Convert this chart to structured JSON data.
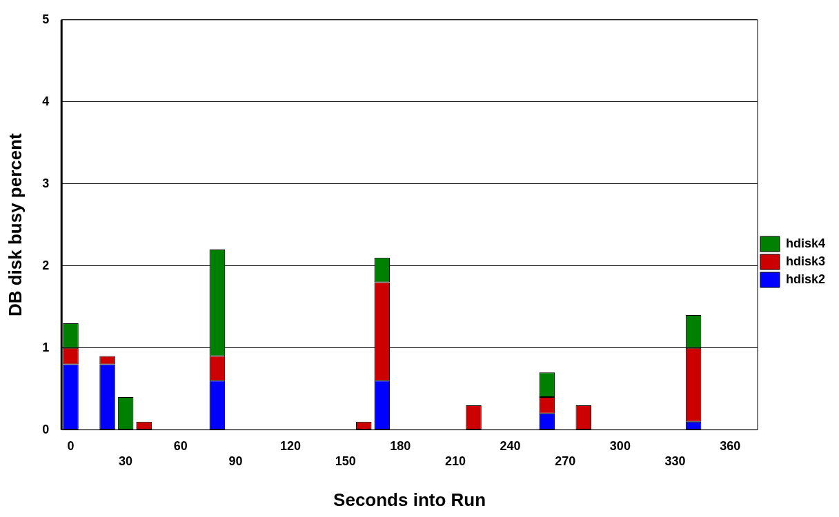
{
  "chart_data": {
    "type": "bar",
    "stacked": true,
    "xlabel": "Seconds into Run",
    "ylabel": "DB disk busy percent",
    "categories": [
      "0",
      null,
      null,
      "30",
      null,
      null,
      "60",
      null,
      null,
      "90",
      null,
      null,
      "120",
      null,
      null,
      "150",
      null,
      null,
      "180",
      null,
      null,
      "210",
      null,
      null,
      "240",
      null,
      null,
      "270",
      null,
      null,
      "300",
      null,
      null,
      "330",
      null,
      null,
      "360",
      null
    ],
    "series": [
      {
        "name": "hdisk2",
        "color": "#0000ff",
        "values": [
          0.8,
          0,
          0.8,
          0,
          0,
          0,
          0,
          0,
          0.6,
          0,
          0,
          0,
          0,
          0,
          0,
          0,
          0,
          0.6,
          0,
          0,
          0,
          0,
          0,
          0,
          0,
          0,
          0.2,
          0,
          0,
          0,
          0,
          0,
          0,
          0,
          0.1,
          0,
          0,
          0
        ]
      },
      {
        "name": "hdisk3",
        "color": "#cc0000",
        "values": [
          0.2,
          0,
          0.1,
          0,
          0.1,
          0,
          0,
          0,
          0.3,
          0,
          0,
          0,
          0,
          0,
          0,
          0,
          0.1,
          1.2,
          0,
          0,
          0,
          0,
          0.3,
          0,
          0,
          0,
          0.2,
          0,
          0.3,
          0,
          0,
          0,
          0,
          0,
          0.9,
          0,
          0,
          0
        ]
      },
      {
        "name": "hdisk4",
        "color": "#008000",
        "values": [
          0.3,
          0,
          0,
          0.4,
          0,
          0,
          0,
          0,
          1.3,
          0,
          0,
          0,
          0,
          0,
          0,
          0,
          0,
          0.3,
          0,
          0,
          0,
          0,
          0,
          0,
          0,
          0,
          0.3,
          0,
          0,
          0,
          0,
          0,
          0,
          0,
          0.4,
          0,
          0,
          0
        ]
      }
    ],
    "ylim": [
      0,
      5
    ],
    "yticks": [
      0,
      1,
      2,
      3,
      4,
      5
    ],
    "grid": "y",
    "legend": "right"
  }
}
